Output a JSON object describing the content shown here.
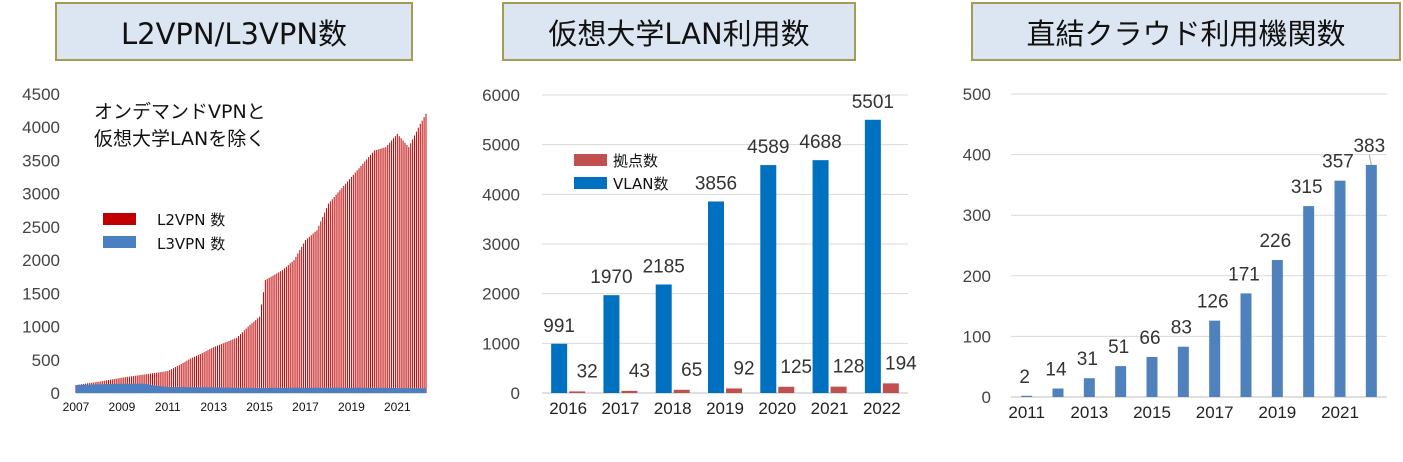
{
  "colors": {
    "title_bg": "#dce6f2",
    "title_border": "#a39c52",
    "l2vpn": "#c00000",
    "l3vpn": "#4a7fc1",
    "vlan": "#0070c0",
    "kyoten": "#c0504d",
    "direct": "#4f81bd"
  },
  "chart_data": [
    {
      "type": "area",
      "title": "L2VPN/L3VPN数",
      "annotation": [
        "オンデマンドVPNと",
        "仮想大学LANを除く"
      ],
      "ylim": [
        0,
        4500
      ],
      "yticks": [
        "0",
        "500",
        "1000",
        "1500",
        "2000",
        "2500",
        "3000",
        "3500",
        "4000",
        "4500"
      ],
      "xticks": [
        "2007",
        "2009",
        "2011",
        "2013",
        "2015",
        "2017",
        "2019",
        "2021"
      ],
      "legend": {
        "placement": "center-left",
        "items": [
          "L2VPN 数",
          "L3VPN 数"
        ]
      },
      "x_range": [
        "2007-01",
        "2022-04"
      ],
      "series": [
        {
          "name": "L2VPN 数",
          "points": [
            [
              "2007-01",
              120
            ],
            [
              "2008-01",
              170
            ],
            [
              "2009-01",
              230
            ],
            [
              "2010-01",
              280
            ],
            [
              "2011-01",
              330
            ],
            [
              "2011-07",
              420
            ],
            [
              "2012-01",
              520
            ],
            [
              "2012-07",
              600
            ],
            [
              "2013-01",
              690
            ],
            [
              "2014-01",
              830
            ],
            [
              "2014-07",
              1000
            ],
            [
              "2015-01",
              1150
            ],
            [
              "2015-04",
              1700
            ],
            [
              "2016-01",
              1850
            ],
            [
              "2016-07",
              2000
            ],
            [
              "2017-01",
              2300
            ],
            [
              "2017-07",
              2450
            ],
            [
              "2018-01",
              2850
            ],
            [
              "2018-07",
              3050
            ],
            [
              "2019-01",
              3250
            ],
            [
              "2019-07",
              3450
            ],
            [
              "2020-01",
              3650
            ],
            [
              "2020-07",
              3700
            ],
            [
              "2021-01",
              3900
            ],
            [
              "2021-07",
              3700
            ],
            [
              "2022-01",
              4050
            ],
            [
              "2022-04",
              4200
            ]
          ]
        },
        {
          "name": "L3VPN 数",
          "points": [
            [
              "2007-01",
              120
            ],
            [
              "2008-01",
              130
            ],
            [
              "2009-01",
              140
            ],
            [
              "2010-01",
              140
            ],
            [
              "2010-07",
              110
            ],
            [
              "2011-01",
              90
            ],
            [
              "2013-01",
              85
            ],
            [
              "2015-01",
              75
            ],
            [
              "2017-01",
              80
            ],
            [
              "2019-01",
              80
            ],
            [
              "2021-01",
              75
            ],
            [
              "2022-04",
              70
            ]
          ]
        }
      ]
    },
    {
      "type": "bar",
      "title": "仮想大学LAN利用数",
      "categories": [
        "2016",
        "2017",
        "2018",
        "2019",
        "2020",
        "2021",
        "2022"
      ],
      "ylim": [
        0,
        6000
      ],
      "yticks": [
        "0",
        "1000",
        "2000",
        "3000",
        "4000",
        "5000",
        "6000"
      ],
      "legend": {
        "placement": "top-left",
        "items": [
          "拠点数",
          "VLAN数"
        ]
      },
      "series": [
        {
          "name": "VLAN数",
          "values": [
            991,
            1970,
            2185,
            3856,
            4589,
            4688,
            5501
          ]
        },
        {
          "name": "拠点数",
          "values": [
            32,
            43,
            65,
            92,
            125,
            128,
            194
          ]
        }
      ]
    },
    {
      "type": "bar",
      "title": "直結クラウド利用機関数",
      "categories": [
        "2011",
        "2012",
        "2013",
        "2014",
        "2015",
        "2016",
        "2017",
        "2018",
        "2019",
        "2020",
        "2021",
        "2022"
      ],
      "xticks": [
        "2011",
        "2013",
        "2015",
        "2017",
        "2019",
        "2021"
      ],
      "ylim": [
        0,
        500
      ],
      "yticks": [
        "0",
        "100",
        "200",
        "300",
        "400",
        "500"
      ],
      "series": [
        {
          "values": [
            2,
            14,
            31,
            51,
            66,
            83,
            126,
            171,
            226,
            315,
            357,
            383
          ]
        }
      ]
    }
  ]
}
